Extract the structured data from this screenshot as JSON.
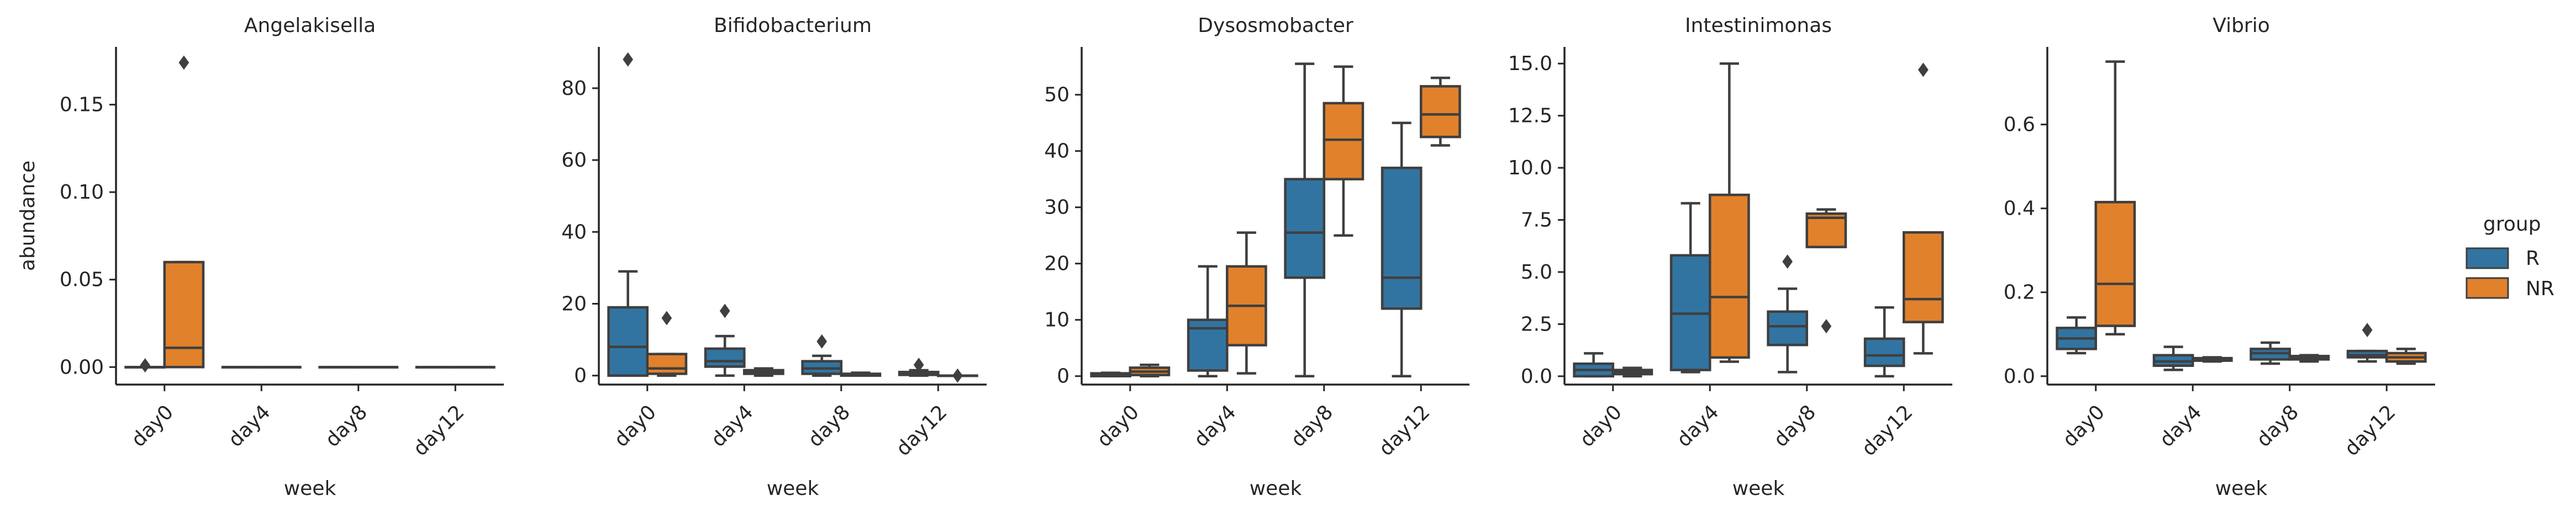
{
  "figure": {
    "ylabel": "abundance",
    "xlabel": "week",
    "categories": [
      "day0",
      "day4",
      "day8",
      "day12"
    ],
    "legend": {
      "title": "group",
      "placement": "right-center",
      "entries": [
        {
          "name": "R",
          "color": "#3274a1"
        },
        {
          "name": "NR",
          "color": "#e1812c"
        }
      ]
    }
  },
  "chart_data": [
    {
      "type": "box",
      "title": "Angelakisella",
      "xlabel": "week",
      "ylabel": "abundance",
      "categories": [
        "day0",
        "day4",
        "day8",
        "day12"
      ],
      "ylim": [
        -0.01,
        0.183
      ],
      "yticks": [
        0.0,
        0.05,
        0.1,
        0.15
      ],
      "ytick_labels": [
        "0.00",
        "0.05",
        "0.10",
        "0.15"
      ],
      "series": [
        {
          "name": "R",
          "color": "#3274a1",
          "boxes": [
            {
              "category": "day0",
              "whislo": 0,
              "q1": 0,
              "med": 0,
              "q3": 0,
              "whishi": 0,
              "fliers": [
                0.001
              ]
            },
            {
              "category": "day4",
              "whislo": 0,
              "q1": 0,
              "med": 0,
              "q3": 0,
              "whishi": 0,
              "fliers": []
            },
            {
              "category": "day8",
              "whislo": 0,
              "q1": 0,
              "med": 0,
              "q3": 0,
              "whishi": 0,
              "fliers": []
            },
            {
              "category": "day12",
              "whislo": 0,
              "q1": 0,
              "med": 0,
              "q3": 0,
              "whishi": 0,
              "fliers": []
            }
          ]
        },
        {
          "name": "NR",
          "color": "#e1812c",
          "boxes": [
            {
              "category": "day0",
              "whislo": 0,
              "q1": 0,
              "med": 0.011,
              "q3": 0.06,
              "whishi": 0.06,
              "fliers": [
                0.174
              ]
            },
            {
              "category": "day4",
              "whislo": 0,
              "q1": 0,
              "med": 0,
              "q3": 0,
              "whishi": 0,
              "fliers": []
            },
            {
              "category": "day8",
              "whislo": 0,
              "q1": 0,
              "med": 0,
              "q3": 0,
              "whishi": 0,
              "fliers": []
            },
            {
              "category": "day12",
              "whislo": 0,
              "q1": 0,
              "med": 0,
              "q3": 0,
              "whishi": 0,
              "fliers": []
            }
          ]
        }
      ]
    },
    {
      "type": "box",
      "title": "Bifidobacterium",
      "xlabel": "week",
      "ylabel": "",
      "categories": [
        "day0",
        "day4",
        "day8",
        "day12"
      ],
      "ylim": [
        -2.5,
        91.5
      ],
      "yticks": [
        0,
        20,
        40,
        60,
        80
      ],
      "ytick_labels": [
        "0",
        "20",
        "40",
        "60",
        "80"
      ],
      "series": [
        {
          "name": "R",
          "color": "#3274a1",
          "boxes": [
            {
              "category": "day0",
              "whislo": 0,
              "q1": 0,
              "med": 8,
              "q3": 19,
              "whishi": 29,
              "fliers": [
                88
              ]
            },
            {
              "category": "day4",
              "whislo": 0,
              "q1": 2.5,
              "med": 4,
              "q3": 7.5,
              "whishi": 11,
              "fliers": [
                18
              ]
            },
            {
              "category": "day8",
              "whislo": 0,
              "q1": 0.5,
              "med": 2,
              "q3": 4,
              "whishi": 5.5,
              "fliers": [
                9.5
              ]
            },
            {
              "category": "day12",
              "whislo": 0,
              "q1": 0.2,
              "med": 0.5,
              "q3": 1,
              "whishi": 1.5,
              "fliers": [
                3
              ]
            }
          ]
        },
        {
          "name": "NR",
          "color": "#e1812c",
          "boxes": [
            {
              "category": "day0",
              "whislo": 0,
              "q1": 0.5,
              "med": 2,
              "q3": 6,
              "whishi": 6,
              "fliers": [
                16
              ]
            },
            {
              "category": "day4",
              "whislo": 0,
              "q1": 0.5,
              "med": 1,
              "q3": 1.5,
              "whishi": 2,
              "fliers": []
            },
            {
              "category": "day8",
              "whislo": 0,
              "q1": 0,
              "med": 0.2,
              "q3": 0.5,
              "whishi": 0.8,
              "fliers": []
            },
            {
              "category": "day12",
              "whislo": 0,
              "q1": 0,
              "med": 0,
              "q3": 0,
              "whishi": 0,
              "fliers": [
                0
              ]
            }
          ]
        }
      ]
    },
    {
      "type": "box",
      "title": "Dysosmobacter",
      "xlabel": "week",
      "ylabel": "",
      "categories": [
        "day0",
        "day4",
        "day8",
        "day12"
      ],
      "ylim": [
        -1.5,
        58.5
      ],
      "yticks": [
        0,
        10,
        20,
        30,
        40,
        50
      ],
      "ytick_labels": [
        "0",
        "10",
        "20",
        "30",
        "40",
        "50"
      ],
      "series": [
        {
          "name": "R",
          "color": "#3274a1",
          "boxes": [
            {
              "category": "day0",
              "whislo": 0,
              "q1": 0,
              "med": 0.3,
              "q3": 0.5,
              "whishi": 0.6,
              "fliers": []
            },
            {
              "category": "day4",
              "whislo": 0,
              "q1": 1,
              "med": 8.5,
              "q3": 10,
              "whishi": 19.5,
              "fliers": []
            },
            {
              "category": "day8",
              "whislo": 0,
              "q1": 17.5,
              "med": 25.5,
              "q3": 35,
              "whishi": 55.5,
              "fliers": []
            },
            {
              "category": "day12",
              "whislo": 0,
              "q1": 12,
              "med": 17.5,
              "q3": 37,
              "whishi": 45,
              "fliers": []
            }
          ]
        },
        {
          "name": "NR",
          "color": "#e1812c",
          "boxes": [
            {
              "category": "day0",
              "whislo": 0,
              "q1": 0.2,
              "med": 0.8,
              "q3": 1.5,
              "whishi": 2,
              "fliers": []
            },
            {
              "category": "day4",
              "whislo": 0.5,
              "q1": 5.5,
              "med": 12.5,
              "q3": 19.5,
              "whishi": 25.5,
              "fliers": []
            },
            {
              "category": "day8",
              "whislo": 25,
              "q1": 35,
              "med": 42,
              "q3": 48.5,
              "whishi": 55,
              "fliers": []
            },
            {
              "category": "day12",
              "whislo": 41,
              "q1": 42.5,
              "med": 46.5,
              "q3": 51.5,
              "whishi": 53,
              "fliers": []
            }
          ]
        }
      ]
    },
    {
      "type": "box",
      "title": "Intestinimonas",
      "xlabel": "week",
      "ylabel": "",
      "categories": [
        "day0",
        "day4",
        "day8",
        "day12"
      ],
      "ylim": [
        -0.4,
        15.8
      ],
      "yticks": [
        0.0,
        2.5,
        5.0,
        7.5,
        10.0,
        12.5,
        15.0
      ],
      "ytick_labels": [
        "0.0",
        "2.5",
        "5.0",
        "7.5",
        "10.0",
        "12.5",
        "15.0"
      ],
      "series": [
        {
          "name": "R",
          "color": "#3274a1",
          "boxes": [
            {
              "category": "day0",
              "whislo": 0,
              "q1": 0,
              "med": 0.3,
              "q3": 0.6,
              "whishi": 1.1,
              "fliers": []
            },
            {
              "category": "day4",
              "whislo": 0.2,
              "q1": 0.3,
              "med": 3,
              "q3": 5.8,
              "whishi": 8.3,
              "fliers": []
            },
            {
              "category": "day8",
              "whislo": 0.2,
              "q1": 1.5,
              "med": 2.4,
              "q3": 3.1,
              "whishi": 4.2,
              "fliers": [
                5.5
              ]
            },
            {
              "category": "day12",
              "whislo": 0,
              "q1": 0.5,
              "med": 1,
              "q3": 1.8,
              "whishi": 3.3,
              "fliers": []
            }
          ]
        },
        {
          "name": "NR",
          "color": "#e1812c",
          "boxes": [
            {
              "category": "day0",
              "whislo": 0,
              "q1": 0.1,
              "med": 0.2,
              "q3": 0.3,
              "whishi": 0.4,
              "fliers": []
            },
            {
              "category": "day4",
              "whislo": 0.7,
              "q1": 0.9,
              "med": 3.8,
              "q3": 8.7,
              "whishi": 15,
              "fliers": []
            },
            {
              "category": "day8",
              "whislo": 6.2,
              "q1": 6.2,
              "med": 7.6,
              "q3": 7.8,
              "whishi": 8,
              "fliers": [
                2.4
              ]
            },
            {
              "category": "day12",
              "whislo": 1.1,
              "q1": 2.6,
              "med": 3.7,
              "q3": 6.9,
              "whishi": 6.9,
              "fliers": [
                14.7
              ]
            }
          ]
        }
      ]
    },
    {
      "type": "box",
      "title": "Vibrio",
      "xlabel": "week",
      "ylabel": "",
      "categories": [
        "day0",
        "day4",
        "day8",
        "day12"
      ],
      "ylim": [
        -0.02,
        0.785
      ],
      "yticks": [
        0.0,
        0.2,
        0.4,
        0.6
      ],
      "ytick_labels": [
        "0.0",
        "0.2",
        "0.4",
        "0.6"
      ],
      "series": [
        {
          "name": "R",
          "color": "#3274a1",
          "boxes": [
            {
              "category": "day0",
              "whislo": 0.055,
              "q1": 0.065,
              "med": 0.09,
              "q3": 0.115,
              "whishi": 0.14,
              "fliers": []
            },
            {
              "category": "day4",
              "whislo": 0.015,
              "q1": 0.025,
              "med": 0.035,
              "q3": 0.05,
              "whishi": 0.07,
              "fliers": []
            },
            {
              "category": "day8",
              "whislo": 0.03,
              "q1": 0.04,
              "med": 0.055,
              "q3": 0.065,
              "whishi": 0.08,
              "fliers": []
            },
            {
              "category": "day12",
              "whislo": 0.035,
              "q1": 0.045,
              "med": 0.05,
              "q3": 0.06,
              "whishi": 0.06,
              "fliers": [
                0.11
              ]
            }
          ]
        },
        {
          "name": "NR",
          "color": "#e1812c",
          "boxes": [
            {
              "category": "day0",
              "whislo": 0.1,
              "q1": 0.12,
              "med": 0.22,
              "q3": 0.415,
              "whishi": 0.75,
              "fliers": []
            },
            {
              "category": "day4",
              "whislo": 0.035,
              "q1": 0.037,
              "med": 0.04,
              "q3": 0.043,
              "whishi": 0.045,
              "fliers": []
            },
            {
              "category": "day8",
              "whislo": 0.035,
              "q1": 0.04,
              "med": 0.045,
              "q3": 0.048,
              "whishi": 0.05,
              "fliers": []
            },
            {
              "category": "day12",
              "whislo": 0.03,
              "q1": 0.035,
              "med": 0.045,
              "q3": 0.055,
              "whishi": 0.065,
              "fliers": []
            }
          ]
        }
      ]
    }
  ]
}
